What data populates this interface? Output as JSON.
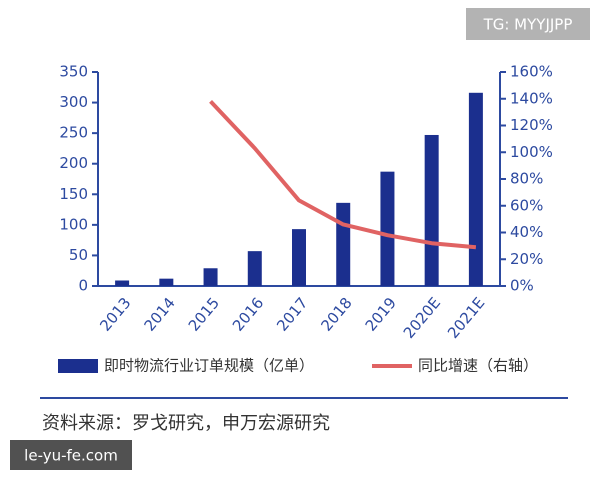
{
  "chart_data": {
    "type": "bar-line",
    "categories": [
      "2013",
      "2014",
      "2015",
      "2016",
      "2017",
      "2018",
      "2019",
      "2020E",
      "2021E"
    ],
    "series": [
      {
        "name": "即时物流行业订单规模（亿单）",
        "type": "bar",
        "color": "#1b2f8e",
        "values": [
          9,
          12,
          29,
          57,
          93,
          136,
          187,
          247,
          316
        ]
      },
      {
        "name": "同比增速（右轴）",
        "type": "line",
        "axis": "y2",
        "color": "#e06363",
        "values": [
          null,
          null,
          138,
          103,
          64,
          46,
          38,
          32,
          29
        ]
      }
    ],
    "ylim": [
      0,
      350
    ],
    "yticks": [
      0,
      50,
      100,
      150,
      200,
      250,
      300,
      350
    ],
    "y2lim": [
      0,
      160
    ],
    "y2ticks": [
      {
        "value": 0,
        "label": "0%"
      },
      {
        "value": 20,
        "label": "20%"
      },
      {
        "value": 40,
        "label": "40%"
      },
      {
        "value": 60,
        "label": "60%"
      },
      {
        "value": 80,
        "label": "80%"
      },
      {
        "value": 100,
        "label": "100%"
      },
      {
        "value": 120,
        "label": "120%"
      },
      {
        "value": 140,
        "label": "140%"
      },
      {
        "value": 160,
        "label": "160%"
      }
    ],
    "legend": "bottom"
  },
  "source": "资料来源：罗戈研究，申万宏源研究",
  "watermarks": [
    "TG: MYYJJPP",
    "le-yu-fe.com"
  ]
}
